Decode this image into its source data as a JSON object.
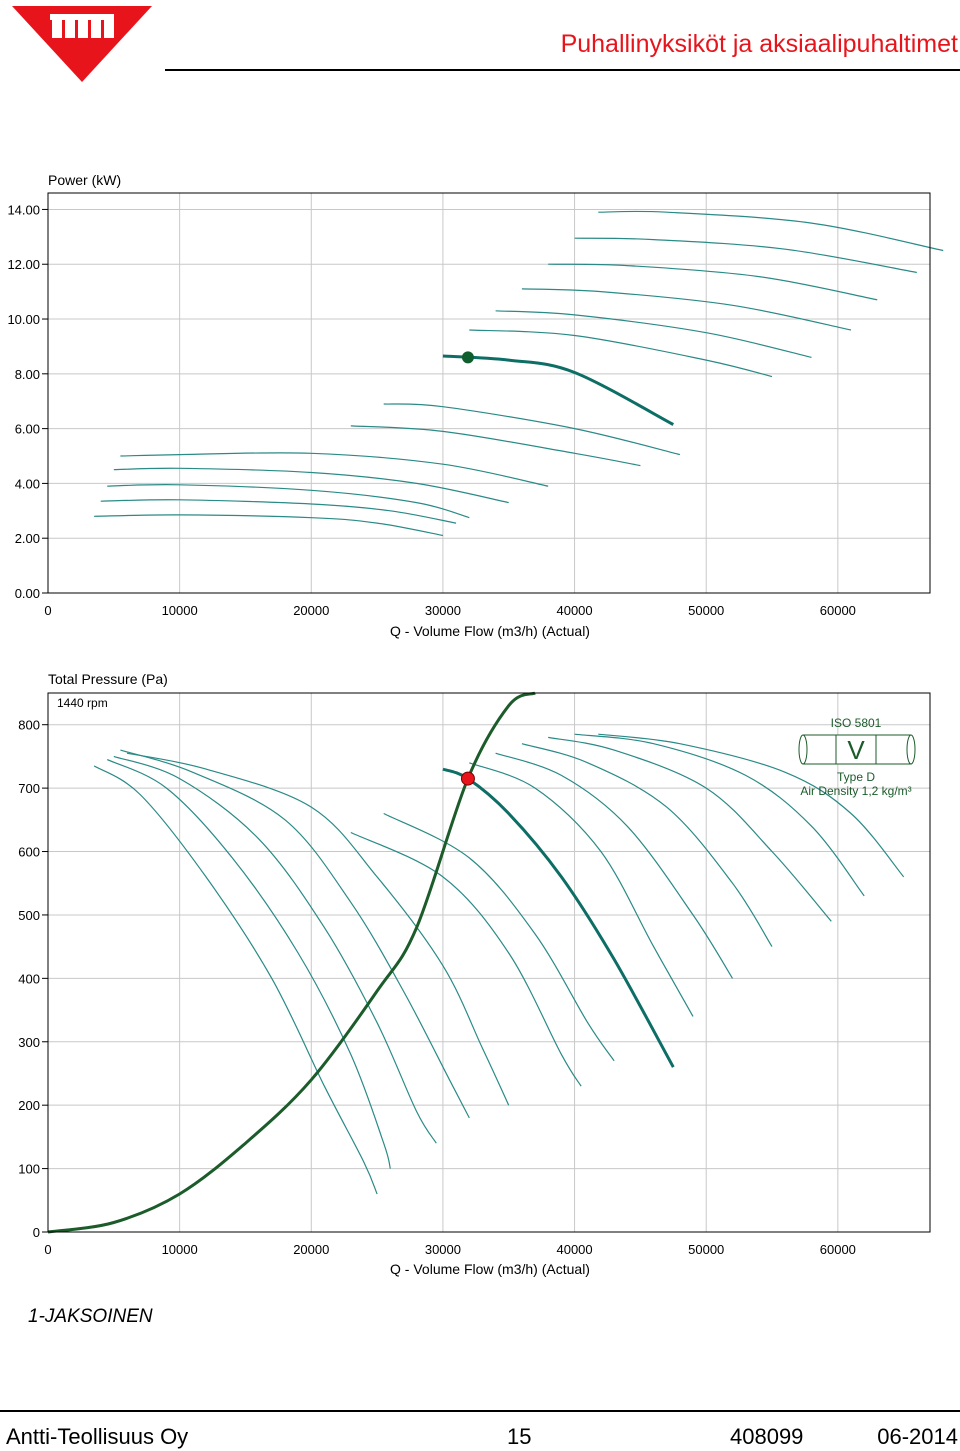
{
  "header": {
    "title": "Puhallinyksiköt ja aksiaalipuhaltimet",
    "logo_text": "antti",
    "brand_color": "#e8141c"
  },
  "power_chart": {
    "ylabel": "Power (kW)",
    "xlabel": "Q - Volume Flow (m3/h) (Actual)",
    "yticks": [
      "14.00",
      "12.00",
      "10.00",
      "8.00",
      "6.00",
      "4.00",
      "2.00",
      "0.00"
    ],
    "xticks": [
      "0",
      "10000",
      "20000",
      "30000",
      "40000",
      "50000",
      "60000"
    ]
  },
  "pressure_chart": {
    "ylabel": "Total Pressure (Pa)",
    "xlabel": "Q - Volume Flow (m3/h) (Actual)",
    "rpm_label": "1440 rpm",
    "yticks": [
      "800",
      "700",
      "600",
      "500",
      "400",
      "300",
      "200",
      "100",
      "0"
    ],
    "xticks": [
      "0",
      "10000",
      "20000",
      "30000",
      "40000",
      "50000",
      "60000"
    ],
    "iso_standard": "ISO 5801",
    "iso_symbol": "V",
    "iso_type": "Type D",
    "iso_density": "Air Density 1,2 kg/m³"
  },
  "chart_data": [
    {
      "type": "line",
      "ylabel": "Power (kW)",
      "xlabel": "Q - Volume Flow (m3/h) (Actual)",
      "xlim": [
        0,
        67000
      ],
      "ylim": [
        0,
        14.6
      ],
      "grid": true,
      "series": [
        {
          "x": [
            3500,
            10000,
            20000,
            25000,
            30000
          ],
          "y": [
            2.8,
            2.85,
            2.75,
            2.55,
            2.1
          ]
        },
        {
          "x": [
            4000,
            10000,
            20000,
            26000,
            31000
          ],
          "y": [
            3.35,
            3.4,
            3.25,
            3.0,
            2.55
          ]
        },
        {
          "x": [
            4500,
            10000,
            20000,
            28000,
            32000
          ],
          "y": [
            3.9,
            3.95,
            3.75,
            3.3,
            2.75
          ]
        },
        {
          "x": [
            5000,
            10000,
            20000,
            28000,
            35000
          ],
          "y": [
            4.5,
            4.55,
            4.4,
            4.0,
            3.3
          ]
        },
        {
          "x": [
            5500,
            10000,
            20000,
            30000,
            38000
          ],
          "y": [
            5.0,
            5.05,
            5.1,
            4.7,
            3.9
          ]
        },
        {
          "x": [
            23000,
            30000,
            40000,
            45000
          ],
          "y": [
            6.1,
            5.9,
            5.1,
            4.65
          ]
        },
        {
          "x": [
            25500,
            30000,
            40000,
            48000
          ],
          "y": [
            6.9,
            6.8,
            6.0,
            5.05
          ]
        },
        {
          "x": [
            30000,
            35000,
            40000,
            47500
          ],
          "y": [
            8.65,
            8.5,
            8.05,
            6.15
          ],
          "selected": true
        },
        {
          "x": [
            32000,
            40000,
            50000,
            55000
          ],
          "y": [
            9.6,
            9.4,
            8.5,
            7.9
          ]
        },
        {
          "x": [
            34000,
            40000,
            50000,
            58000
          ],
          "y": [
            10.3,
            10.15,
            9.5,
            8.6
          ]
        },
        {
          "x": [
            36000,
            42000,
            52000,
            61000
          ],
          "y": [
            11.1,
            11.0,
            10.5,
            9.6
          ]
        },
        {
          "x": [
            38000,
            44000,
            54000,
            63000
          ],
          "y": [
            12.0,
            11.95,
            11.55,
            10.7
          ]
        },
        {
          "x": [
            40000,
            46000,
            56000,
            66000
          ],
          "y": [
            12.95,
            12.9,
            12.55,
            11.7
          ]
        },
        {
          "x": [
            41800,
            47000,
            58000,
            68000
          ],
          "y": [
            13.9,
            13.9,
            13.5,
            12.5
          ]
        }
      ],
      "operating_point": {
        "x": 31900,
        "y": 8.6
      }
    },
    {
      "type": "line",
      "ylabel": "Total Pressure (Pa)",
      "xlabel": "Q - Volume Flow (m3/h) (Actual)",
      "xlim": [
        0,
        67000
      ],
      "ylim": [
        0,
        850
      ],
      "grid": true,
      "series": [
        {
          "x": [
            3500,
            7000,
            12000,
            17000,
            21000,
            24000,
            25000
          ],
          "y": [
            735,
            690,
            560,
            400,
            230,
            110,
            60
          ]
        },
        {
          "x": [
            4500,
            9000,
            14000,
            19000,
            23000,
            25500,
            26000
          ],
          "y": [
            745,
            700,
            590,
            440,
            280,
            140,
            100
          ]
        },
        {
          "x": [
            5000,
            10000,
            16000,
            21000,
            25000,
            28000,
            29500
          ],
          "y": [
            750,
            715,
            620,
            480,
            330,
            190,
            140
          ]
        },
        {
          "x": [
            5500,
            11000,
            18000,
            23000,
            27000,
            30500,
            32000
          ],
          "y": [
            760,
            725,
            650,
            520,
            380,
            240,
            180
          ]
        },
        {
          "x": [
            6000,
            12000,
            20000,
            25000,
            30000,
            33000,
            35000
          ],
          "y": [
            755,
            730,
            670,
            560,
            420,
            290,
            200
          ]
        },
        {
          "x": [
            23000,
            30000,
            35000,
            39000,
            40500
          ],
          "y": [
            630,
            560,
            440,
            280,
            230
          ]
        },
        {
          "x": [
            25500,
            32000,
            37000,
            41000,
            43000
          ],
          "y": [
            660,
            590,
            470,
            330,
            270
          ]
        },
        {
          "x": [
            30000,
            31900,
            35000,
            39000,
            43000,
            47500
          ],
          "y": [
            730,
            715,
            660,
            560,
            430,
            260
          ],
          "selected": true
        },
        {
          "x": [
            32000,
            37000,
            42000,
            46000,
            49000
          ],
          "y": [
            740,
            700,
            600,
            450,
            340
          ]
        },
        {
          "x": [
            34000,
            39000,
            44000,
            49000,
            52000
          ],
          "y": [
            755,
            720,
            640,
            500,
            400
          ]
        },
        {
          "x": [
            36000,
            41000,
            47000,
            52000,
            55000
          ],
          "y": [
            770,
            740,
            670,
            550,
            450
          ]
        },
        {
          "x": [
            38000,
            43000,
            50000,
            55000,
            59500
          ],
          "y": [
            780,
            760,
            700,
            600,
            490
          ]
        },
        {
          "x": [
            40000,
            46000,
            53000,
            58000,
            62000
          ],
          "y": [
            785,
            770,
            720,
            640,
            530
          ]
        },
        {
          "x": [
            41800,
            48000,
            56000,
            61000,
            65000
          ],
          "y": [
            785,
            770,
            725,
            660,
            560
          ]
        }
      ],
      "system_curve": {
        "x": [
          0,
          5000,
          10000,
          15000,
          20000,
          25000,
          28000,
          31900,
          35000,
          37000
        ],
        "y": [
          0,
          15,
          60,
          140,
          240,
          380,
          480,
          715,
          830,
          860
        ]
      },
      "operating_point": {
        "x": 31900,
        "y": 715
      }
    }
  ],
  "section_label": "1-JAKSOINEN",
  "footer": {
    "company": "Antti-Teollisuus Oy",
    "page": "15",
    "code": "408099",
    "date": "06-2014"
  }
}
